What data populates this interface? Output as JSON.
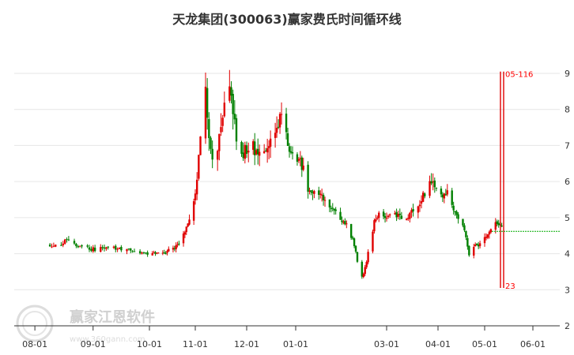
{
  "chart_data": {
    "type": "candlestick",
    "title": "天龙集团(300063)赢家费氏时间循环线",
    "x_tick_labels": [
      "08-01",
      "09-01",
      "10-01",
      "11-01",
      "12-01",
      "01-01",
      "03-01",
      "04-01",
      "05-01",
      "06-01"
    ],
    "y_tick_labels": [
      "2",
      "3",
      "4",
      "5",
      "6",
      "7",
      "8",
      "9"
    ],
    "ylim": [
      2,
      9.3
    ],
    "grid": "horizontal",
    "colors": {
      "up": "#e00000",
      "down": "#008000",
      "cycle_line": "#e00000",
      "level_line": "#00aa00"
    },
    "fib_cycle_labels": [
      "05-116",
      "23"
    ],
    "level_line_value": 4.62,
    "anchors": [
      {
        "x": "07-20",
        "y": 4.25
      },
      {
        "x": "07-27",
        "y": 4.28
      },
      {
        "x": "08-05",
        "y": 4.3
      },
      {
        "x": "08-12",
        "y": 4.38
      },
      {
        "x": "08-18",
        "y": 4.36
      },
      {
        "x": "08-25",
        "y": 4.18
      },
      {
        "x": "09-02",
        "y": 4.12
      },
      {
        "x": "09-08",
        "y": 4.2
      },
      {
        "x": "09-15",
        "y": 4.15
      },
      {
        "x": "09-22",
        "y": 4.08
      },
      {
        "x": "09-29",
        "y": 3.98
      },
      {
        "x": "10-05",
        "y": 4.0
      },
      {
        "x": "10-12",
        "y": 4.05
      },
      {
        "x": "10-18",
        "y": 4.15
      },
      {
        "x": "10-22",
        "y": 4.35
      },
      {
        "x": "10-26",
        "y": 4.75
      },
      {
        "x": "10-30",
        "y": 5.3
      },
      {
        "x": "11-02",
        "y": 6.0
      },
      {
        "x": "11-05",
        "y": 8.0
      },
      {
        "x": "11-07",
        "y": 8.7
      },
      {
        "x": "11-09",
        "y": 7.3
      },
      {
        "x": "11-11",
        "y": 6.7
      },
      {
        "x": "11-13",
        "y": 6.6
      },
      {
        "x": "11-16",
        "y": 7.6
      },
      {
        "x": "11-19",
        "y": 8.4
      },
      {
        "x": "11-21",
        "y": 8.9
      },
      {
        "x": "11-24",
        "y": 7.5
      },
      {
        "x": "11-27",
        "y": 6.6
      },
      {
        "x": "11-30",
        "y": 6.9
      },
      {
        "x": "12-03",
        "y": 7.1
      },
      {
        "x": "12-06",
        "y": 6.9
      },
      {
        "x": "12-09",
        "y": 6.8
      },
      {
        "x": "12-12",
        "y": 6.85
      },
      {
        "x": "12-15",
        "y": 6.95
      },
      {
        "x": "12-19",
        "y": 7.3
      },
      {
        "x": "12-22",
        "y": 7.9
      },
      {
        "x": "12-25",
        "y": 7.4
      },
      {
        "x": "12-28",
        "y": 6.9
      },
      {
        "x": "01-02",
        "y": 6.7
      },
      {
        "x": "01-06",
        "y": 6.3
      },
      {
        "x": "01-09",
        "y": 5.85
      },
      {
        "x": "01-14",
        "y": 5.75
      },
      {
        "x": "01-19",
        "y": 5.55
      },
      {
        "x": "01-24",
        "y": 5.3
      },
      {
        "x": "01-29",
        "y": 5.05
      },
      {
        "x": "02-02",
        "y": 4.85
      },
      {
        "x": "02-06",
        "y": 4.5
      },
      {
        "x": "02-09",
        "y": 4.1
      },
      {
        "x": "02-11",
        "y": 3.5
      },
      {
        "x": "02-13",
        "y": 3.35
      },
      {
        "x": "02-15",
        "y": 3.6
      },
      {
        "x": "02-18",
        "y": 4.25
      },
      {
        "x": "02-21",
        "y": 4.9
      },
      {
        "x": "02-25",
        "y": 5.2
      },
      {
        "x": "03-01",
        "y": 5.05
      },
      {
        "x": "03-05",
        "y": 5.15
      },
      {
        "x": "03-10",
        "y": 4.95
      },
      {
        "x": "03-15",
        "y": 5.1
      },
      {
        "x": "03-20",
        "y": 5.25
      },
      {
        "x": "03-26",
        "y": 5.9
      },
      {
        "x": "03-29",
        "y": 6.1
      },
      {
        "x": "04-02",
        "y": 5.5
      },
      {
        "x": "04-06",
        "y": 5.75
      },
      {
        "x": "04-10",
        "y": 5.3
      },
      {
        "x": "04-14",
        "y": 4.9
      },
      {
        "x": "04-18",
        "y": 4.7
      },
      {
        "x": "04-21",
        "y": 4.0
      },
      {
        "x": "04-25",
        "y": 4.2
      },
      {
        "x": "04-29",
        "y": 4.3
      },
      {
        "x": "05-03",
        "y": 4.6
      },
      {
        "x": "05-06",
        "y": 4.75
      },
      {
        "x": "05-09",
        "y": 4.9
      },
      {
        "x": "05-11",
        "y": 4.75
      },
      {
        "x": "05-14",
        "y": 4.62
      }
    ]
  },
  "watermark": {
    "brand": "赢家江恩软件",
    "url": "www.360gann.com"
  }
}
